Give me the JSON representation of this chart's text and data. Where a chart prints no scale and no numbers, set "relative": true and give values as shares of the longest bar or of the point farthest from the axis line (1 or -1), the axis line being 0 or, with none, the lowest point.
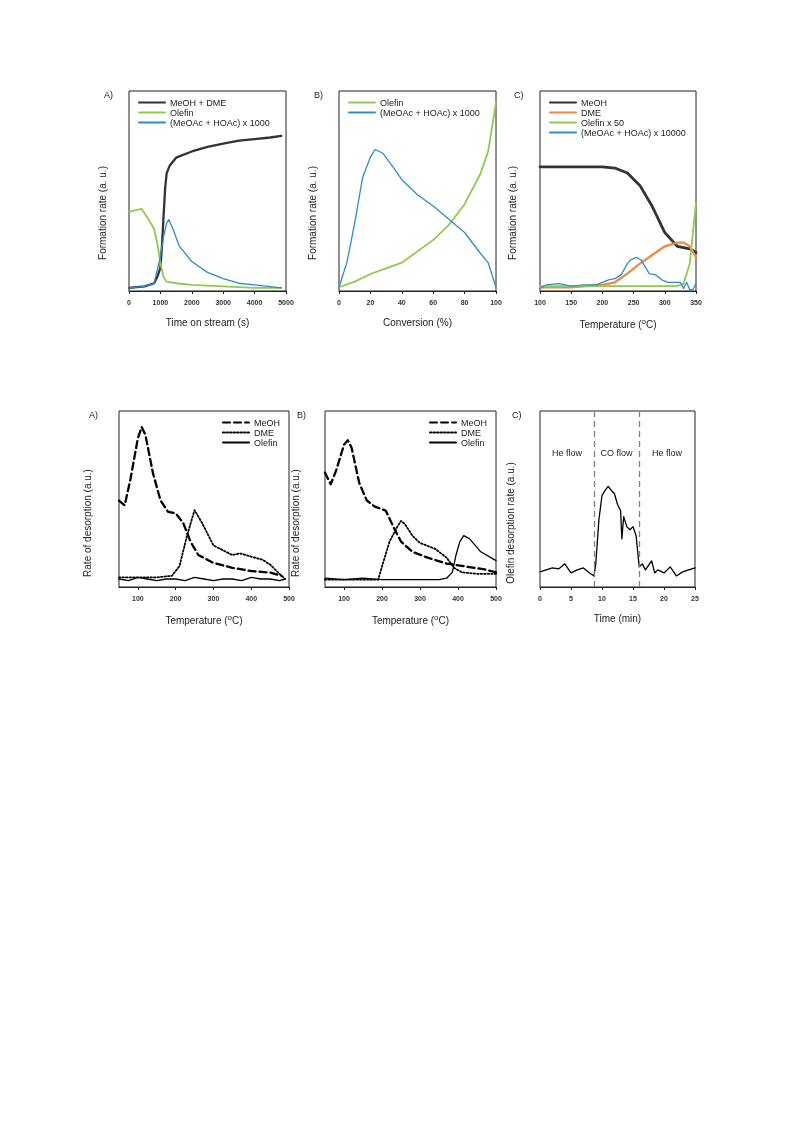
{
  "chart_data": [
    {
      "type": "line",
      "title": "A)",
      "xlabel": "Time on stream (s)",
      "ylabel": "Formation rate (a. u.)",
      "relative": true,
      "xlim": [
        0,
        5000
      ],
      "xticks": [
        0,
        1000,
        2000,
        3000,
        4000,
        5000
      ],
      "legend": "top left",
      "series": [
        {
          "name": "MeOH + DME",
          "color": "#333333",
          "x": [
            0,
            500,
            800,
            900,
            1000,
            1050,
            1100,
            1150,
            1200,
            1300,
            1500,
            2000,
            2500,
            3000,
            3500,
            4000,
            4500,
            4850
          ],
          "values": [
            0.02,
            0.03,
            0.05,
            0.09,
            0.15,
            0.29,
            0.48,
            0.66,
            0.76,
            0.81,
            0.86,
            0.9,
            0.93,
            0.95,
            0.97,
            0.98,
            0.99,
            1.0
          ]
        },
        {
          "name": "Olefin",
          "color": "#92c950",
          "x": [
            0,
            200,
            400,
            600,
            800,
            900,
            1000,
            1100,
            1200,
            1500,
            2000,
            3000,
            4000,
            4850
          ],
          "values": [
            0.51,
            0.52,
            0.53,
            0.47,
            0.4,
            0.31,
            0.18,
            0.09,
            0.06,
            0.05,
            0.04,
            0.03,
            0.02,
            0.02
          ]
        },
        {
          "name": "(MeOAc + HOAc) x 1000",
          "color": "#2e8dc8",
          "x": [
            0,
            500,
            800,
            1000,
            1100,
            1200,
            1270,
            1400,
            1600,
            2000,
            2500,
            3000,
            3500,
            4000,
            4850
          ],
          "values": [
            0.02,
            0.03,
            0.05,
            0.22,
            0.35,
            0.44,
            0.46,
            0.4,
            0.29,
            0.19,
            0.12,
            0.08,
            0.05,
            0.04,
            0.02
          ]
        }
      ]
    },
    {
      "type": "line",
      "title": "B)",
      "xlabel": "Conversion (%)",
      "ylabel": "Formation rate (a. u.)",
      "relative": true,
      "xlim": [
        0,
        100
      ],
      "xticks": [
        0,
        20,
        40,
        60,
        80,
        100
      ],
      "legend": "top left",
      "series": [
        {
          "name": "Olefin",
          "color": "#92c950",
          "x": [
            0,
            10,
            20,
            30,
            40,
            50,
            60,
            70,
            80,
            90,
            95,
            100
          ],
          "values": [
            0.02,
            0.05,
            0.09,
            0.12,
            0.15,
            0.21,
            0.27,
            0.35,
            0.46,
            0.62,
            0.74,
            1.0
          ]
        },
        {
          "name": "(MeOAc + HOAc) x 1000",
          "color": "#2e8dc8",
          "x": [
            0,
            5,
            10,
            15,
            20,
            23,
            28,
            35,
            40,
            50,
            60,
            70,
            80,
            90,
            95,
            100
          ],
          "values": [
            0.02,
            0.15,
            0.36,
            0.6,
            0.71,
            0.75,
            0.73,
            0.65,
            0.59,
            0.51,
            0.45,
            0.38,
            0.31,
            0.2,
            0.15,
            0.02
          ]
        }
      ]
    },
    {
      "type": "line",
      "title": "C)",
      "xlabel": "Temperature ($^{o}$C)",
      "ylabel": "Formation rate (a. u.)",
      "relative": true,
      "xlim": [
        100,
        350
      ],
      "xticks": [
        100,
        150,
        200,
        250,
        300,
        350
      ],
      "legend": "top left",
      "series": [
        {
          "name": "MeOH",
          "color": "#333333",
          "x": [
            100,
            150,
            200,
            220,
            240,
            260,
            280,
            300,
            320,
            340,
            350
          ],
          "values": [
            1.0,
            1.0,
            1.0,
            0.99,
            0.95,
            0.85,
            0.68,
            0.47,
            0.36,
            0.34,
            0.31
          ]
        },
        {
          "name": "DME",
          "color": "#f08a4b",
          "x": [
            100,
            150,
            200,
            220,
            240,
            260,
            280,
            300,
            320,
            330,
            340,
            350
          ],
          "values": [
            0.03,
            0.03,
            0.05,
            0.07,
            0.14,
            0.22,
            0.29,
            0.36,
            0.39,
            0.39,
            0.36,
            0.27
          ]
        },
        {
          "name": "Olefin x 50",
          "color": "#92c950",
          "x": [
            100,
            200,
            320,
            330,
            340,
            345,
            350
          ],
          "values": [
            0.04,
            0.04,
            0.04,
            0.06,
            0.22,
            0.47,
            0.71
          ]
        },
        {
          "name": "(MeOAc + HOAc) x 10000",
          "color": "#2e8dc8",
          "x": [
            100,
            110,
            130,
            150,
            170,
            190,
            200,
            210,
            220,
            230,
            240,
            245,
            255,
            262,
            268,
            275,
            285,
            295,
            305,
            315,
            325,
            330,
            335,
            340,
            345,
            350
          ],
          "values": [
            0.02,
            0.05,
            0.06,
            0.04,
            0.05,
            0.05,
            0.07,
            0.09,
            0.1,
            0.13,
            0.22,
            0.25,
            0.27,
            0.25,
            0.2,
            0.14,
            0.13,
            0.09,
            0.07,
            0.07,
            0.07,
            0.02,
            0.07,
            0.01,
            0.01,
            0.06
          ]
        }
      ]
    },
    {
      "type": "line",
      "title": "A)",
      "xlabel": "Temperature ($^{o}$C)",
      "ylabel": "Rate of desorption (a.u.)",
      "relative": true,
      "xlim": [
        50,
        500
      ],
      "xticks": [
        100,
        200,
        300,
        400,
        500
      ],
      "legend": "top right",
      "series": [
        {
          "name": "MeOH",
          "color": "#000000",
          "line_style": "dashed",
          "x": [
            50,
            65,
            80,
            100,
            110,
            120,
            140,
            160,
            180,
            200,
            220,
            240,
            260,
            300,
            350,
            400,
            450,
            480
          ],
          "values": [
            0.54,
            0.51,
            0.67,
            0.93,
            1.0,
            0.95,
            0.71,
            0.54,
            0.47,
            0.46,
            0.4,
            0.28,
            0.2,
            0.15,
            0.12,
            0.1,
            0.09,
            0.07
          ]
        },
        {
          "name": "DME",
          "color": "#000000",
          "line_style": "dotted",
          "x": [
            50,
            150,
            190,
            210,
            230,
            250,
            270,
            300,
            350,
            370,
            400,
            430,
            450,
            480,
            490
          ],
          "values": [
            0.06,
            0.06,
            0.07,
            0.13,
            0.32,
            0.48,
            0.4,
            0.26,
            0.2,
            0.21,
            0.19,
            0.17,
            0.14,
            0.07,
            0.05
          ]
        },
        {
          "name": "Olefin",
          "color": "#000000",
          "line_style": "solid",
          "x": [
            50,
            75,
            100,
            125,
            150,
            175,
            200,
            225,
            250,
            275,
            300,
            325,
            350,
            375,
            400,
            425,
            450,
            475,
            490
          ],
          "values": [
            0.05,
            0.04,
            0.06,
            0.05,
            0.04,
            0.05,
            0.05,
            0.04,
            0.06,
            0.05,
            0.04,
            0.05,
            0.05,
            0.04,
            0.06,
            0.05,
            0.05,
            0.04,
            0.05
          ]
        }
      ]
    },
    {
      "type": "line",
      "title": "B)",
      "xlabel": "Temperature ($^{o}$C)",
      "ylabel": "Rate of desorption (a.u.)",
      "relative": true,
      "xlim": [
        50,
        500
      ],
      "xticks": [
        100,
        200,
        300,
        400,
        500
      ],
      "legend": "top right",
      "series": [
        {
          "name": "MeOH",
          "color": "#000000",
          "line_style": "dashed",
          "x": [
            50,
            65,
            80,
            100,
            110,
            120,
            140,
            160,
            180,
            210,
            230,
            250,
            280,
            320,
            370,
            420,
            470,
            500
          ],
          "values": [
            0.78,
            0.7,
            0.8,
            0.97,
            1.0,
            0.95,
            0.71,
            0.59,
            0.55,
            0.52,
            0.41,
            0.31,
            0.24,
            0.2,
            0.16,
            0.14,
            0.12,
            0.1
          ]
        },
        {
          "name": "DME",
          "color": "#000000",
          "line_style": "dotted",
          "x": [
            50,
            190,
            200,
            220,
            240,
            250,
            260,
            280,
            300,
            340,
            370,
            390,
            410,
            450,
            500
          ],
          "values": [
            0.05,
            0.05,
            0.14,
            0.31,
            0.41,
            0.45,
            0.43,
            0.35,
            0.3,
            0.26,
            0.2,
            0.13,
            0.1,
            0.09,
            0.09
          ]
        },
        {
          "name": "Olefin",
          "color": "#000000",
          "line_style": "solid",
          "x": [
            50,
            100,
            150,
            200,
            250,
            300,
            350,
            370,
            385,
            395,
            405,
            415,
            430,
            460,
            500
          ],
          "values": [
            0.06,
            0.05,
            0.06,
            0.05,
            0.05,
            0.05,
            0.05,
            0.06,
            0.1,
            0.22,
            0.31,
            0.35,
            0.33,
            0.24,
            0.18
          ]
        }
      ]
    },
    {
      "type": "line",
      "title": "C)",
      "xlabel": "Time (min)",
      "ylabel": "Olefin desorption rate (a.u.)",
      "relative": true,
      "xlim": [
        0,
        25
      ],
      "xticks": [
        0,
        5,
        10,
        15,
        20,
        25
      ],
      "ref_lines": [
        {
          "axis": "x",
          "value": 8.7,
          "color": "#808080",
          "line_style": "dashed"
        },
        {
          "axis": "x",
          "value": 16,
          "color": "#808080",
          "line_style": "dashed"
        }
      ],
      "annotations": [
        "He flow",
        "CO flow",
        "He flow"
      ],
      "series": [
        {
          "color": "#000000",
          "x": [
            0,
            1,
            2,
            3,
            4,
            5,
            6,
            7,
            8,
            8.7,
            9,
            9.5,
            10,
            10.5,
            11,
            11.5,
            12,
            12.5,
            13,
            13.2,
            13.5,
            14,
            14.5,
            15,
            15.5,
            16,
            16.5,
            17,
            18,
            18.5,
            19,
            20,
            21,
            22,
            23,
            24,
            25
          ],
          "values": [
            0.15,
            0.17,
            0.19,
            0.18,
            0.23,
            0.14,
            0.17,
            0.19,
            0.14,
            0.11,
            0.23,
            0.67,
            0.91,
            0.96,
            1.0,
            0.96,
            0.93,
            0.82,
            0.76,
            0.48,
            0.7,
            0.6,
            0.57,
            0.6,
            0.51,
            0.2,
            0.23,
            0.17,
            0.26,
            0.14,
            0.17,
            0.14,
            0.2,
            0.11,
            0.15,
            0.17,
            0.19
          ]
        }
      ]
    }
  ]
}
